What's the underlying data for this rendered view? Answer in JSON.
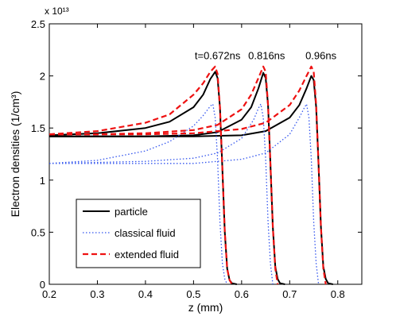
{
  "chart_data": {
    "type": "line",
    "title": "",
    "xlabel": "z (mm)",
    "ylabel": "Electron densities (1/cm³)",
    "y_scale_label": "x 10¹³",
    "xlim": [
      0.2,
      0.85
    ],
    "ylim": [
      0,
      2.5
    ],
    "xticks": [
      0.2,
      0.3,
      0.4,
      0.5,
      0.6,
      0.7,
      0.8
    ],
    "yticks": [
      0,
      0.5,
      1,
      1.5,
      2,
      2.5
    ],
    "x_tick_labels": [
      "0.2",
      "0.3",
      "0.4",
      "0.5",
      "0.6",
      "0.7",
      "0.8"
    ],
    "y_tick_labels": [
      "0",
      "0.5",
      "1",
      "1.5",
      "2",
      "2.5"
    ],
    "grid": false,
    "legend_position": "lower-left",
    "annotations": [
      {
        "text": "t=0.672ns",
        "x": 0.55,
        "y": 2.2
      },
      {
        "text": "0.816ns",
        "x": 0.652,
        "y": 2.2
      },
      {
        "text": "0.96ns",
        "x": 0.765,
        "y": 2.2
      }
    ],
    "series": [
      {
        "name": "particle",
        "color": "#000000",
        "dash": "solid",
        "curves": [
          {
            "time": "0.672ns",
            "x": [
              0.2,
              0.3,
              0.4,
              0.45,
              0.5,
              0.52,
              0.535,
              0.545,
              0.55,
              0.555,
              0.56,
              0.565,
              0.57,
              0.575,
              0.58,
              0.59
            ],
            "y": [
              1.43,
              1.45,
              1.5,
              1.56,
              1.7,
              1.82,
              1.97,
              2.04,
              1.98,
              1.7,
              1.1,
              0.5,
              0.15,
              0.04,
              0.01,
              0
            ]
          },
          {
            "time": "0.816ns",
            "x": [
              0.2,
              0.3,
              0.4,
              0.5,
              0.55,
              0.6,
              0.62,
              0.635,
              0.645,
              0.65,
              0.655,
              0.66,
              0.665,
              0.67,
              0.675,
              0.68,
              0.69
            ],
            "y": [
              1.42,
              1.42,
              1.42,
              1.43,
              1.46,
              1.58,
              1.7,
              1.88,
              2.03,
              1.98,
              1.72,
              1.15,
              0.55,
              0.17,
              0.05,
              0.01,
              0
            ]
          },
          {
            "time": "0.96ns",
            "x": [
              0.2,
              0.4,
              0.5,
              0.6,
              0.65,
              0.7,
              0.72,
              0.735,
              0.745,
              0.75,
              0.755,
              0.76,
              0.765,
              0.77,
              0.775,
              0.78,
              0.79
            ],
            "y": [
              1.42,
              1.42,
              1.42,
              1.43,
              1.47,
              1.6,
              1.72,
              1.88,
              2.0,
              1.96,
              1.7,
              1.15,
              0.55,
              0.17,
              0.05,
              0.01,
              0
            ]
          }
        ]
      },
      {
        "name": "classical fluid",
        "color": "#3355ee",
        "dash": "dotted",
        "curves": [
          {
            "time": "0.672ns",
            "x": [
              0.2,
              0.3,
              0.4,
              0.45,
              0.5,
              0.52,
              0.535,
              0.54,
              0.545,
              0.55,
              0.555,
              0.56,
              0.565,
              0.57
            ],
            "y": [
              1.16,
              1.19,
              1.28,
              1.37,
              1.52,
              1.62,
              1.71,
              1.73,
              1.6,
              1.2,
              0.6,
              0.2,
              0.05,
              0
            ]
          },
          {
            "time": "0.816ns",
            "x": [
              0.2,
              0.3,
              0.4,
              0.5,
              0.55,
              0.6,
              0.625,
              0.635,
              0.64,
              0.645,
              0.65,
              0.655,
              0.66,
              0.665
            ],
            "y": [
              1.16,
              1.17,
              1.18,
              1.21,
              1.26,
              1.4,
              1.58,
              1.69,
              1.73,
              1.6,
              1.2,
              0.6,
              0.2,
              0
            ]
          },
          {
            "time": "0.96ns",
            "x": [
              0.2,
              0.4,
              0.5,
              0.6,
              0.65,
              0.7,
              0.72,
              0.73,
              0.735,
              0.74,
              0.745,
              0.75,
              0.755,
              0.76
            ],
            "y": [
              1.16,
              1.16,
              1.16,
              1.2,
              1.26,
              1.44,
              1.6,
              1.69,
              1.73,
              1.6,
              1.2,
              0.6,
              0.2,
              0
            ]
          }
        ]
      },
      {
        "name": "extended fluid",
        "color": "#ee1111",
        "dash": "dashed",
        "curves": [
          {
            "time": "0.672ns",
            "x": [
              0.2,
              0.3,
              0.4,
              0.45,
              0.5,
              0.52,
              0.535,
              0.545,
              0.55,
              0.555,
              0.56,
              0.565,
              0.57,
              0.575,
              0.58
            ],
            "y": [
              1.44,
              1.47,
              1.55,
              1.63,
              1.82,
              1.93,
              2.04,
              2.09,
              2.02,
              1.7,
              1.1,
              0.5,
              0.15,
              0.04,
              0
            ]
          },
          {
            "time": "0.816ns",
            "x": [
              0.2,
              0.3,
              0.4,
              0.5,
              0.55,
              0.6,
              0.62,
              0.635,
              0.645,
              0.65,
              0.655,
              0.66,
              0.665,
              0.67,
              0.675
            ],
            "y": [
              1.44,
              1.44,
              1.45,
              1.48,
              1.53,
              1.68,
              1.82,
              1.98,
              2.09,
              2.04,
              1.72,
              1.15,
              0.55,
              0.15,
              0
            ]
          },
          {
            "time": "0.96ns",
            "x": [
              0.2,
              0.4,
              0.5,
              0.6,
              0.65,
              0.7,
              0.72,
              0.735,
              0.745,
              0.75,
              0.755,
              0.76,
              0.765,
              0.77,
              0.775
            ],
            "y": [
              1.44,
              1.44,
              1.45,
              1.49,
              1.55,
              1.72,
              1.86,
              2.0,
              2.09,
              2.04,
              1.72,
              1.15,
              0.55,
              0.15,
              0
            ]
          }
        ]
      }
    ]
  }
}
